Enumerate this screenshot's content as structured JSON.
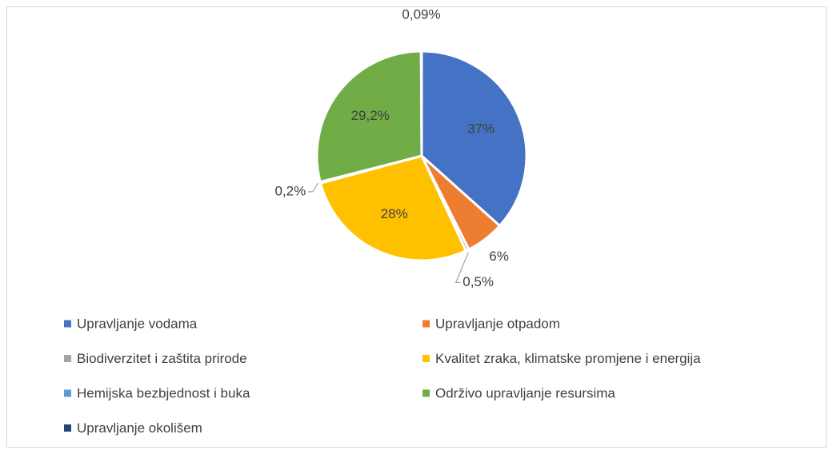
{
  "chart_data": {
    "type": "pie",
    "categories": [
      "Upravljanje vodama",
      "Upravljanje otpadom",
      "Biodiverzitet i zaštita prirode",
      "Kvalitet zraka, klimatske promjene i energija",
      "Hemijska bezbjednost i buka",
      "Održivo upravljanje resursima",
      "Upravljanje okolišem"
    ],
    "values": [
      37,
      6,
      0.5,
      28,
      0.2,
      29.2,
      0.09
    ],
    "value_labels": [
      "37%",
      "6%",
      "0,5%",
      "28%",
      "0,2%",
      "29,2%",
      "0,09%"
    ],
    "colors": [
      "#4472c4",
      "#ed7d31",
      "#a5a5a5",
      "#ffc000",
      "#5b9bd5",
      "#70ad47",
      "#264478"
    ],
    "legend": "bottom"
  }
}
